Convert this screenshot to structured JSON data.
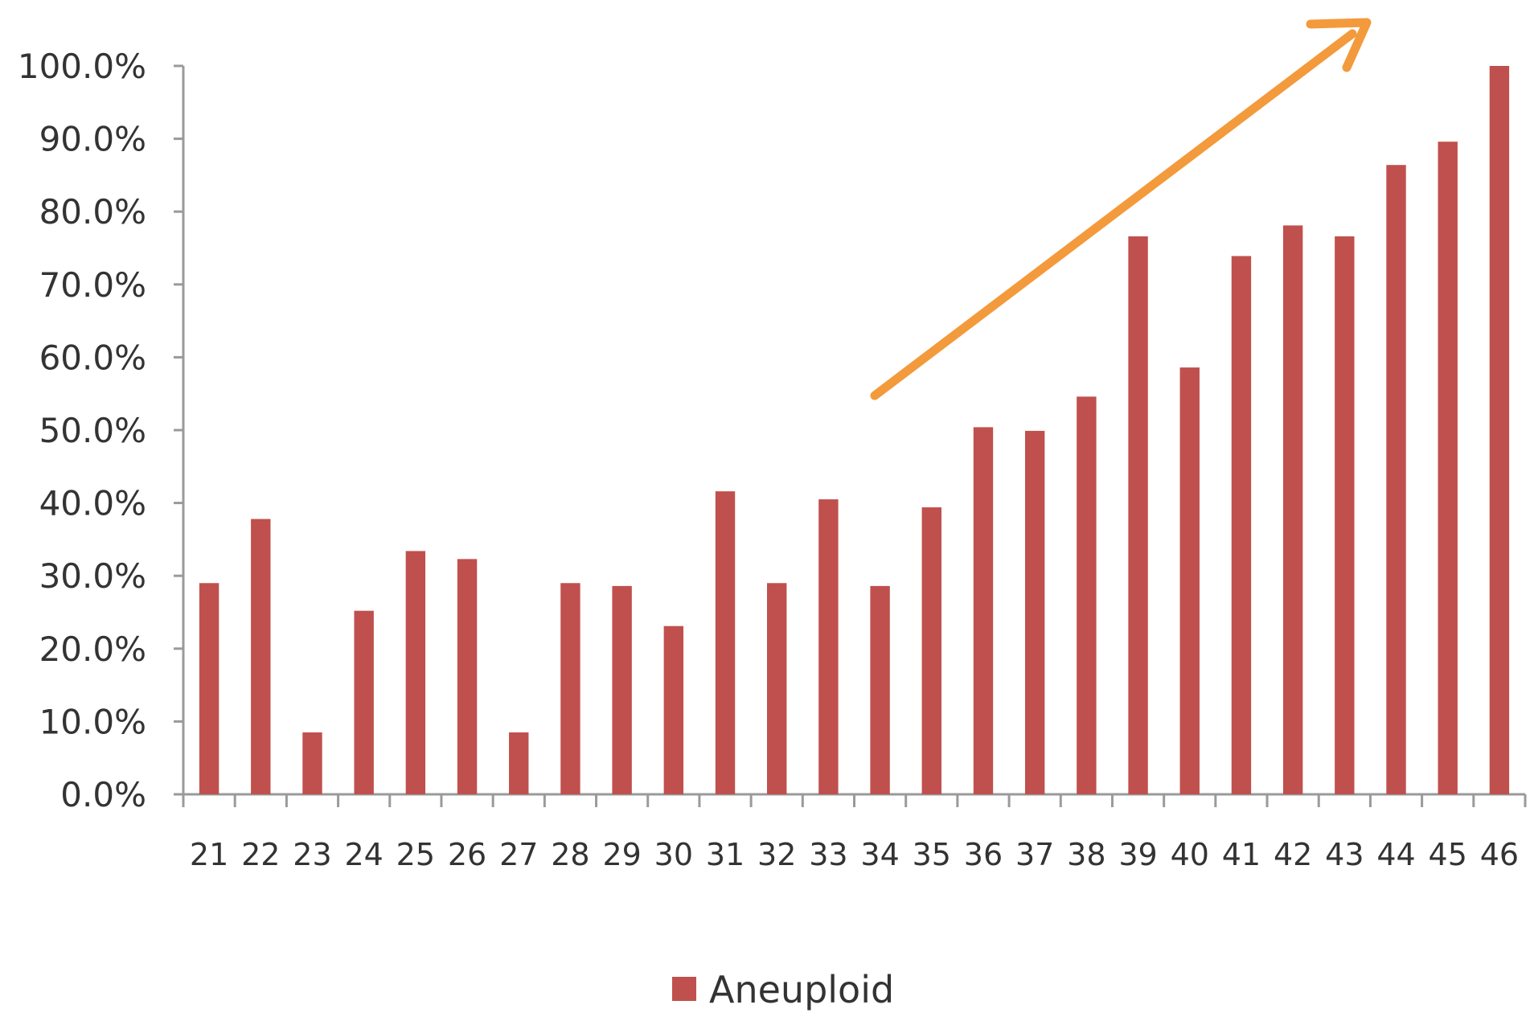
{
  "chart_data": {
    "type": "bar",
    "categories": [
      "21",
      "22",
      "23",
      "24",
      "25",
      "26",
      "27",
      "28",
      "29",
      "30",
      "31",
      "32",
      "33",
      "34",
      "35",
      "36",
      "37",
      "38",
      "39",
      "40",
      "41",
      "42",
      "43",
      "44",
      "45",
      "46"
    ],
    "series": [
      {
        "name": "Aneuploid",
        "color": "#c0504d",
        "values": [
          29.0,
          37.8,
          8.5,
          25.2,
          33.4,
          32.3,
          8.5,
          29.0,
          28.6,
          23.1,
          41.6,
          29.0,
          40.5,
          28.6,
          39.4,
          50.4,
          49.9,
          54.6,
          76.6,
          58.6,
          73.9,
          78.1,
          76.6,
          86.4,
          89.6,
          100.0
        ]
      }
    ],
    "ylim": [
      0,
      100
    ],
    "yticks": [
      "0.0%",
      "10.0%",
      "20.0%",
      "30.0%",
      "40.0%",
      "50.0%",
      "60.0%",
      "70.0%",
      "80.0%",
      "90.0%",
      "100.0%"
    ],
    "ytick_values": [
      0,
      10,
      20,
      30,
      40,
      50,
      60,
      70,
      80,
      90,
      100
    ],
    "y_format": "percent",
    "grid": false,
    "legend": {
      "position": "bottom-center",
      "entries": [
        "Aneuploid"
      ]
    },
    "annotation": {
      "type": "arrow",
      "color": "#f39a3c",
      "direction": "up-right"
    },
    "title": "",
    "xlabel": "",
    "ylabel": ""
  }
}
